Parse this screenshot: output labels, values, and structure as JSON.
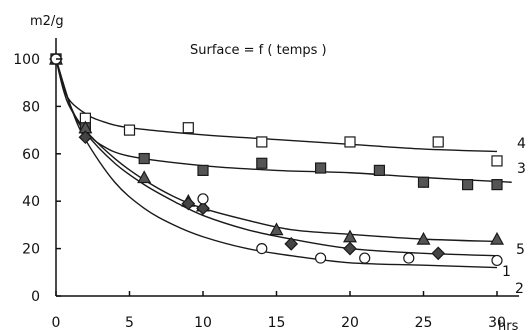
{
  "chart_data": {
    "type": "scatter",
    "title": "Surface = f ( temps )",
    "ylabel": "m2/g",
    "xlabel": "hrs",
    "xlim": [
      0,
      31
    ],
    "ylim": [
      0,
      100
    ],
    "x_ticks": [
      0,
      5,
      10,
      15,
      20,
      25,
      30
    ],
    "y_ticks": [
      0,
      20,
      40,
      60,
      80,
      100
    ],
    "x_tick_labels": [
      "0",
      "5",
      "10",
      "15",
      "20",
      "25",
      "30"
    ],
    "y_tick_labels": [
      "0",
      "20",
      "40",
      "60",
      "80",
      "100"
    ],
    "grid": false,
    "series": [
      {
        "name": "4",
        "marker": "open-square",
        "points": [
          [
            0,
            100
          ],
          [
            2,
            75
          ],
          [
            5,
            70
          ],
          [
            9,
            71
          ],
          [
            14,
            65
          ],
          [
            20,
            65
          ],
          [
            26,
            65
          ],
          [
            30,
            57
          ]
        ],
        "fit": [
          [
            0,
            100
          ],
          [
            0.5,
            88
          ],
          [
            1,
            82
          ],
          [
            2,
            77
          ],
          [
            3,
            74
          ],
          [
            5,
            71
          ],
          [
            10,
            68
          ],
          [
            15,
            66
          ],
          [
            20,
            64
          ],
          [
            25,
            62
          ],
          [
            30,
            61
          ]
        ]
      },
      {
        "name": "3",
        "marker": "filled-square",
        "points": [
          [
            0,
            100
          ],
          [
            2,
            71
          ],
          [
            6,
            58
          ],
          [
            10,
            53
          ],
          [
            14,
            56
          ],
          [
            18,
            54
          ],
          [
            22,
            53
          ],
          [
            25,
            48
          ],
          [
            28,
            47
          ],
          [
            30,
            47
          ]
        ],
        "fit": [
          [
            0,
            100
          ],
          [
            0.5,
            87
          ],
          [
            1,
            79
          ],
          [
            2,
            70
          ],
          [
            3,
            64
          ],
          [
            5,
            59
          ],
          [
            10,
            55
          ],
          [
            15,
            53
          ],
          [
            20,
            52
          ],
          [
            25,
            50
          ],
          [
            31,
            48
          ]
        ]
      },
      {
        "name": "5",
        "marker": "filled-triangle",
        "points": [
          [
            0,
            100
          ],
          [
            2,
            71
          ],
          [
            6,
            50
          ],
          [
            9,
            40
          ],
          [
            10,
            38
          ],
          [
            15,
            28
          ],
          [
            20,
            25
          ],
          [
            25,
            24
          ],
          [
            30,
            24
          ]
        ],
        "fit": [
          [
            0,
            100
          ],
          [
            1,
            80
          ],
          [
            2,
            70
          ],
          [
            4,
            58
          ],
          [
            6,
            49
          ],
          [
            8,
            42
          ],
          [
            10,
            37
          ],
          [
            13,
            32
          ],
          [
            16,
            28
          ],
          [
            20,
            26
          ],
          [
            25,
            24
          ],
          [
            30,
            23
          ]
        ]
      },
      {
        "name": "1",
        "marker": "filled-diamond",
        "points": [
          [
            0,
            100
          ],
          [
            2,
            67
          ],
          [
            9,
            39
          ],
          [
            10,
            37
          ],
          [
            16,
            22
          ],
          [
            20,
            20
          ],
          [
            26,
            18
          ]
        ],
        "fit": [
          [
            0,
            100
          ],
          [
            1,
            80
          ],
          [
            2,
            69
          ],
          [
            4,
            56
          ],
          [
            6,
            47
          ],
          [
            8,
            40
          ],
          [
            10,
            34
          ],
          [
            13,
            28
          ],
          [
            16,
            24
          ],
          [
            20,
            20
          ],
          [
            25,
            18
          ],
          [
            30,
            17
          ]
        ]
      },
      {
        "name": "2",
        "marker": "open-diamond-circle",
        "points": [
          [
            0,
            100
          ],
          [
            10,
            41
          ],
          [
            14,
            20
          ],
          [
            18,
            16
          ],
          [
            21,
            16
          ],
          [
            24,
            16
          ],
          [
            30,
            15
          ]
        ],
        "fit": [
          [
            0,
            100
          ],
          [
            1,
            80
          ],
          [
            2,
            66
          ],
          [
            4,
            48
          ],
          [
            6,
            37
          ],
          [
            8,
            30
          ],
          [
            10,
            25
          ],
          [
            13,
            20
          ],
          [
            16,
            17
          ],
          [
            20,
            14
          ],
          [
            25,
            13
          ],
          [
            30,
            12
          ]
        ]
      }
    ]
  }
}
